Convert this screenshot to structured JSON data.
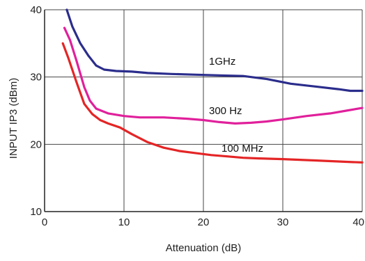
{
  "chart_data": {
    "type": "line",
    "title": "",
    "xlabel": "Attenuation (dB)",
    "ylabel": "INPUT IP3 (dBm)",
    "xlim": [
      0,
      40
    ],
    "ylim": [
      10,
      40
    ],
    "xticks": [
      "0",
      "10",
      "20",
      "30",
      "40"
    ],
    "yticks": [
      "10",
      "20",
      "30",
      "40"
    ],
    "grid": true,
    "series": [
      {
        "name": "1GHz",
        "color": "#2b2d8c",
        "x": [
          2.8,
          3.5,
          4.5,
          5.5,
          6.5,
          7.5,
          9,
          11,
          13,
          16,
          19,
          22,
          25,
          28,
          31,
          34,
          37,
          38.5,
          40
        ],
        "y": [
          40,
          37.5,
          35,
          33.2,
          31.7,
          31.1,
          30.9,
          30.8,
          30.6,
          30.45,
          30.35,
          30.25,
          30.15,
          29.7,
          29.0,
          28.6,
          28.2,
          27.95,
          27.95
        ]
      },
      {
        "name": "300 Hz",
        "color": "#e0209b",
        "x": [
          2.5,
          3.2,
          4.0,
          5.0,
          5.7,
          6.5,
          8,
          10,
          12,
          15,
          18,
          20,
          22,
          24,
          26,
          28,
          30,
          33,
          36,
          38,
          40
        ],
        "y": [
          37.3,
          35.5,
          32.5,
          28.5,
          26.5,
          25.3,
          24.6,
          24.2,
          24.0,
          24.0,
          23.8,
          23.6,
          23.3,
          23.1,
          23.2,
          23.4,
          23.7,
          24.2,
          24.6,
          25.0,
          25.4
        ]
      },
      {
        "name": "100 MHz",
        "color": "#e42526",
        "x": [
          2.3,
          3.0,
          4.0,
          5.0,
          6.0,
          7.0,
          8.0,
          9.5,
          11,
          13,
          15,
          17,
          19,
          21,
          23,
          25,
          27,
          30,
          34,
          38,
          40
        ],
        "y": [
          35.0,
          32.8,
          29.3,
          26.0,
          24.5,
          23.6,
          23.1,
          22.5,
          21.5,
          20.3,
          19.5,
          19.0,
          18.7,
          18.4,
          18.2,
          18.0,
          17.9,
          17.8,
          17.6,
          17.4,
          17.3
        ]
      }
    ]
  }
}
